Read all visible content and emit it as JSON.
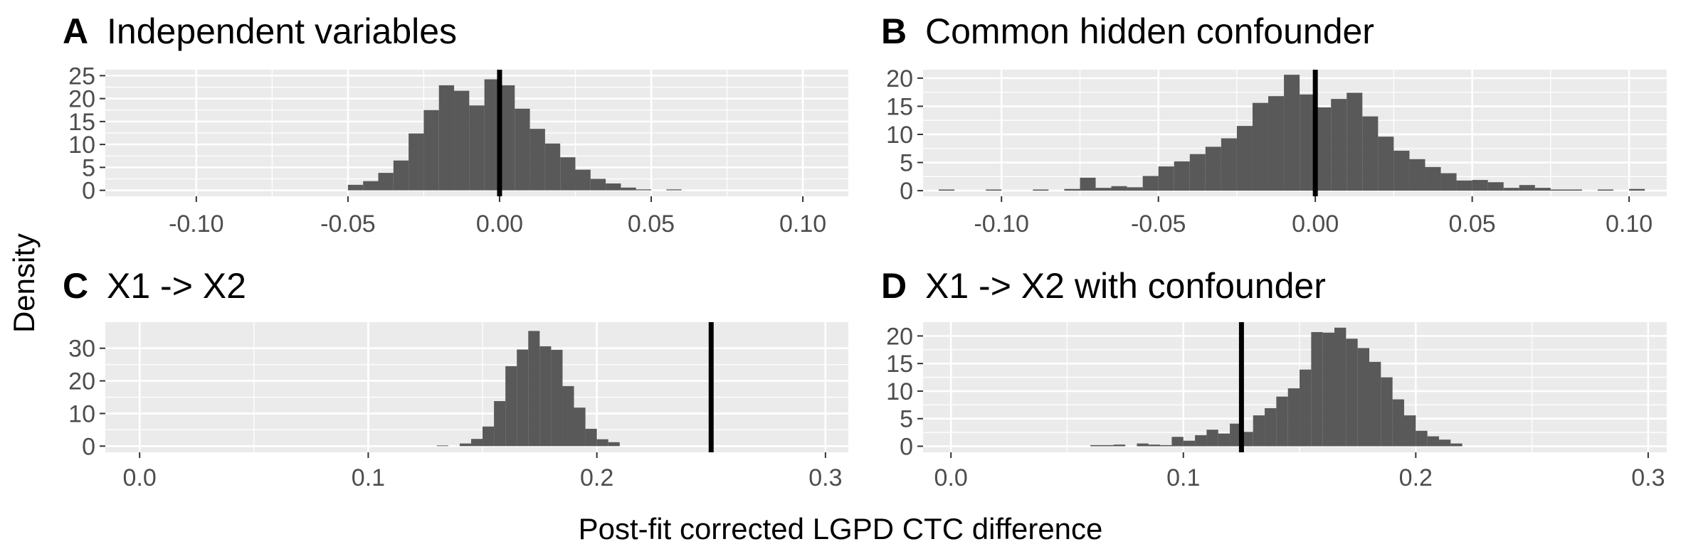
{
  "figure": {
    "ylabel": "Density",
    "xlabel": "Post-fit corrected LGPD CTC difference"
  },
  "colors": {
    "panel_background": "#ebebeb",
    "gridline": "#ffffff",
    "bar_fill": "#595959",
    "reference_line": "#000000",
    "tick_text": "#4d4d4d"
  },
  "chart_data": [
    {
      "type": "bar",
      "letter": "A",
      "title": "Independent variables",
      "xlim": [
        -0.13,
        0.115
      ],
      "ylim": [
        -1.3,
        26.3
      ],
      "xticks": [
        -0.1,
        -0.05,
        0.0,
        0.05,
        0.1
      ],
      "xtick_labels": [
        "-0.10",
        "-0.05",
        "0.00",
        "0.05",
        "0.10"
      ],
      "yticks": [
        0,
        5,
        10,
        15,
        20,
        25
      ],
      "ytick_labels": [
        "0",
        "5",
        "10",
        "15",
        "20",
        "25"
      ],
      "bin_width": 0.005,
      "x": [
        -0.0475,
        -0.0425,
        -0.0375,
        -0.0325,
        -0.0275,
        -0.0225,
        -0.0175,
        -0.0125,
        -0.0075,
        -0.0025,
        0.0025,
        0.0075,
        0.0125,
        0.0175,
        0.0225,
        0.0275,
        0.0325,
        0.0375,
        0.0425,
        0.0475,
        0.0575
      ],
      "values": [
        1.2,
        2,
        3.8,
        6.5,
        12.4,
        17.5,
        22.9,
        21.7,
        18.5,
        24.2,
        22.9,
        17.8,
        13.4,
        10.2,
        7.2,
        4.5,
        2.5,
        1.5,
        0.6,
        0.2,
        0.2
      ],
      "reference_x": 0.0
    },
    {
      "type": "bar",
      "letter": "B",
      "title": "Common hidden confounder",
      "xlim": [
        -0.125,
        0.112
      ],
      "ylim": [
        -1.0,
        21.5
      ],
      "xticks": [
        -0.1,
        -0.05,
        0.0,
        0.05,
        0.1
      ],
      "xtick_labels": [
        "-0.10",
        "-0.05",
        "0.00",
        "0.05",
        "0.10"
      ],
      "yticks": [
        0,
        5,
        10,
        15,
        20
      ],
      "ytick_labels": [
        "0",
        "5",
        "10",
        "15",
        "20"
      ],
      "bin_width": 0.005,
      "x": [
        -0.1175,
        -0.1025,
        -0.0875,
        -0.0775,
        -0.0725,
        -0.0675,
        -0.0625,
        -0.0575,
        -0.0525,
        -0.0475,
        -0.0425,
        -0.0375,
        -0.0325,
        -0.0275,
        -0.0225,
        -0.0175,
        -0.0125,
        -0.0075,
        -0.0025,
        0.0025,
        0.0075,
        0.0125,
        0.0175,
        0.0225,
        0.0275,
        0.0325,
        0.0375,
        0.0425,
        0.0475,
        0.0525,
        0.0575,
        0.0625,
        0.0675,
        0.0725,
        0.0775,
        0.0825,
        0.0925,
        0.1025
      ],
      "values": [
        0.2,
        0.2,
        0.2,
        0.3,
        2.3,
        0.5,
        0.8,
        0.6,
        2.6,
        4.3,
        5.2,
        6.5,
        7.8,
        9.3,
        11.5,
        15.6,
        16.8,
        20.6,
        17.1,
        14.8,
        16.3,
        17.4,
        13.2,
        9.6,
        7.1,
        5.6,
        4.2,
        3.1,
        1.8,
        1.9,
        1.5,
        0.5,
        1,
        0.5,
        0.2,
        0.2,
        0.2,
        0.3
      ],
      "reference_x": 0.0
    },
    {
      "type": "bar",
      "letter": "C",
      "title": "X1 -> X2",
      "xlim": [
        -0.015,
        0.31
      ],
      "ylim": [
        -1.9,
        38.0
      ],
      "xticks": [
        0.0,
        0.1,
        0.2,
        0.3
      ],
      "xtick_labels": [
        "0.0",
        "0.1",
        "0.2",
        "0.3"
      ],
      "yticks": [
        0,
        10,
        20,
        30
      ],
      "ytick_labels": [
        "0",
        "10",
        "20",
        "30"
      ],
      "bin_width": 0.005,
      "x": [
        0.1325,
        0.1425,
        0.1475,
        0.1525,
        0.1575,
        0.1625,
        0.1675,
        0.1725,
        0.1775,
        0.1825,
        0.1875,
        0.1925,
        0.1975,
        0.2025,
        0.2075
      ],
      "values": [
        0.2,
        0.8,
        2.2,
        6,
        13.8,
        24.5,
        29.6,
        35.3,
        30.6,
        29.5,
        18.4,
        11.8,
        5.3,
        2.1,
        1.2
      ],
      "reference_x": 0.25
    },
    {
      "type": "bar",
      "letter": "D",
      "title": "X1 -> X2 with confounder",
      "xlim": [
        -0.012,
        0.308
      ],
      "ylim": [
        -1.1,
        22.5
      ],
      "xticks": [
        0.0,
        0.1,
        0.2,
        0.3
      ],
      "xtick_labels": [
        "0.0",
        "0.1",
        "0.2",
        "0.3"
      ],
      "yticks": [
        0,
        5,
        10,
        15,
        20
      ],
      "ytick_labels": [
        "0",
        "5",
        "10",
        "15",
        "20"
      ],
      "bin_width": 0.005,
      "x": [
        0.0625,
        0.0675,
        0.0725,
        0.0825,
        0.0875,
        0.0925,
        0.0975,
        0.1025,
        0.1075,
        0.1125,
        0.1175,
        0.1225,
        0.1275,
        0.1325,
        0.1375,
        0.1425,
        0.1475,
        0.1525,
        0.1575,
        0.1625,
        0.1675,
        0.1725,
        0.1775,
        0.1825,
        0.1875,
        0.1925,
        0.1975,
        0.2025,
        0.2075,
        0.2125,
        0.2175
      ],
      "values": [
        0.2,
        0.2,
        0.3,
        0.5,
        0.3,
        0.2,
        1.7,
        1,
        2,
        3,
        2.3,
        4.1,
        2.6,
        5.6,
        6.9,
        9,
        10.5,
        13.9,
        20.7,
        20.6,
        21.5,
        19.5,
        17.8,
        15.3,
        12.5,
        8.5,
        5.6,
        2.8,
        1.8,
        1.2,
        0.5
      ],
      "reference_x": 0.125
    }
  ]
}
